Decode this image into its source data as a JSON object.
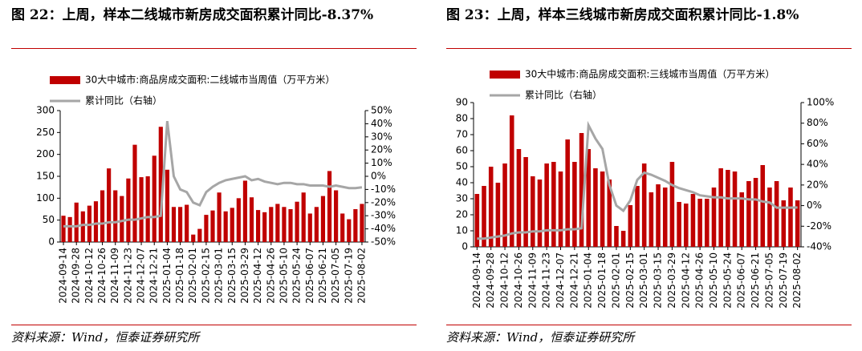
{
  "chart_data": [
    {
      "type": "combo",
      "title": "图 22：上周，样本二线城市新房成交面积累计同比-8.37%",
      "source": "资料来源：Wind，恒泰证券研究所",
      "categories": [
        "2024-09-14",
        null,
        "2024-09-28",
        null,
        "2024-10-12",
        null,
        "2024-10-26",
        null,
        "2024-11-09",
        null,
        "2024-11-23",
        null,
        "2024-12-07",
        null,
        "2024-12-21",
        null,
        "2025-01-04",
        null,
        "2025-01-18",
        null,
        "2025-02-01",
        null,
        "2025-02-15",
        null,
        "2025-03-01",
        null,
        "2025-03-15",
        null,
        "2025-03-29",
        null,
        "2025-04-12",
        null,
        "2025-04-26",
        null,
        "2025-05-10",
        null,
        "2025-05-24",
        null,
        "2025-06-07",
        null,
        "2025-06-21",
        null,
        "2025-07-05",
        null,
        "2025-07-19",
        null,
        "2025-08-02"
      ],
      "series": [
        {
          "name": "30大中城市:商品房成交面积:二线城市当周值（万平方米）",
          "color": "#c00000",
          "type": "bar",
          "values": [
            60,
            57,
            90,
            70,
            83,
            93,
            118,
            168,
            118,
            105,
            145,
            222,
            148,
            150,
            197,
            263,
            165,
            80,
            80,
            85,
            17,
            30,
            62,
            72,
            113,
            70,
            78,
            100,
            140,
            102,
            73,
            68,
            80,
            87,
            80,
            75,
            92,
            113,
            65,
            80,
            105,
            162,
            118,
            65,
            52,
            75,
            87
          ]
        },
        {
          "name": "累计同比（右轴）",
          "color": "#a6a6a6",
          "type": "line",
          "axis": "y2",
          "values": [
            -38,
            -38,
            -38,
            -37,
            -37,
            -36,
            -36,
            -35,
            -35,
            -34,
            -33,
            -33,
            -32,
            -31,
            -31,
            -30,
            42,
            0,
            -10,
            -12,
            -20,
            -22,
            -12,
            -8,
            -5,
            -3,
            -2,
            -1,
            0,
            -3,
            -2,
            -4,
            -5,
            -6,
            -5,
            -5,
            -6,
            -6,
            -7,
            -7,
            -7,
            -8,
            -7,
            -8,
            -9,
            -9,
            -8.37
          ]
        }
      ],
      "ylim": [
        0,
        300
      ],
      "yticks": [
        0,
        50,
        100,
        150,
        200,
        250,
        300
      ],
      "y2lim": [
        -50,
        50
      ],
      "y2ticks": [
        {
          "value": -50,
          "label": "-50%"
        },
        {
          "value": -40,
          "label": "-40%"
        },
        {
          "value": -30,
          "label": "-30%"
        },
        {
          "value": -20,
          "label": "-20%"
        },
        {
          "value": -10,
          "label": "-10%"
        },
        {
          "value": 0,
          "label": "0%"
        },
        {
          "value": 10,
          "label": "10%"
        },
        {
          "value": 20,
          "label": "20%"
        },
        {
          "value": 30,
          "label": "30%"
        },
        {
          "value": 40,
          "label": "40%"
        },
        {
          "value": 50,
          "label": "50%"
        }
      ]
    },
    {
      "type": "combo",
      "title": "图 23：上周，样本三线城市新房成交面积累计同比-1.8%",
      "source": "资料来源：Wind，恒泰证券研究所",
      "categories": [
        "2024-09-14",
        null,
        "2024-09-28",
        null,
        "2024-10-12",
        null,
        "2024-10-26",
        null,
        "2024-11-09",
        null,
        "2024-11-23",
        null,
        "2024-12-07",
        null,
        "2024-12-21",
        null,
        "2025-01-04",
        null,
        "2025-01-18",
        null,
        "2025-02-01",
        null,
        "2025-02-15",
        null,
        "2025-03-01",
        null,
        "2025-03-15",
        null,
        "2025-03-29",
        null,
        "2025-04-12",
        null,
        "2025-04-26",
        null,
        "2025-05-10",
        null,
        "2025-05-24",
        null,
        "2025-06-07",
        null,
        "2025-06-21",
        null,
        "2025-07-05",
        null,
        "2025-07-19",
        null,
        "2025-08-02"
      ],
      "series": [
        {
          "name": "30大中城市:商品房成交面积:三线城市当周值（万平方米）",
          "color": "#c00000",
          "type": "bar",
          "values": [
            33,
            38,
            50,
            40,
            52,
            82,
            61,
            56,
            44,
            42,
            52,
            53,
            47,
            67,
            53,
            71,
            61,
            49,
            47,
            42,
            13,
            10,
            26,
            38,
            52,
            34,
            39,
            37,
            53,
            28,
            27,
            33,
            30,
            30,
            37,
            49,
            48,
            47,
            34,
            41,
            43,
            51,
            37,
            41,
            29,
            37,
            29
          ]
        },
        {
          "name": "累计同比（右轴）",
          "color": "#a6a6a6",
          "type": "line",
          "axis": "y2",
          "values": [
            -32,
            -32,
            -31,
            -30,
            -29,
            -27,
            -26,
            -26,
            -25,
            -25,
            -24,
            -24,
            -24,
            -23,
            -23,
            -22,
            78,
            65,
            55,
            20,
            0,
            -5,
            5,
            25,
            32,
            30,
            27,
            24,
            20,
            17,
            15,
            13,
            10,
            9,
            8,
            8,
            7,
            7,
            7,
            6,
            6,
            4,
            3,
            -2,
            -2,
            -2,
            -1.8
          ]
        }
      ],
      "ylim": [
        0,
        90
      ],
      "yticks": [
        0,
        10,
        20,
        30,
        40,
        50,
        60,
        70,
        80,
        90
      ],
      "y2lim": [
        -40,
        100
      ],
      "y2ticks": [
        {
          "value": -40,
          "label": "-40%"
        },
        {
          "value": -20,
          "label": "-20%"
        },
        {
          "value": 0,
          "label": "0%"
        },
        {
          "value": 20,
          "label": "20%"
        },
        {
          "value": 40,
          "label": "40%"
        },
        {
          "value": 60,
          "label": "60%"
        },
        {
          "value": 80,
          "label": "80%"
        },
        {
          "value": 100,
          "label": "100%"
        }
      ]
    }
  ]
}
